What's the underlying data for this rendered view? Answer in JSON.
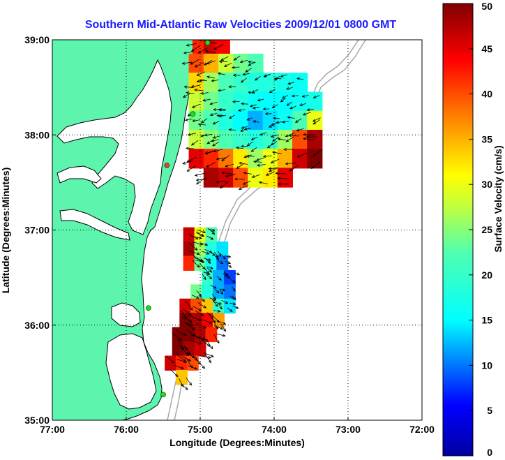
{
  "chart_data": {
    "type": "heatmap",
    "title": "Southern Mid-Atlantic Raw Velocities 2009/12/01 0800 GMT",
    "xlabel": "Longitude (Degrees:Minutes)",
    "ylabel": "Latitude (Degrees:Minutes)",
    "colorbar_label": "Surface Velocity (cm/s)",
    "x_ticks": [
      "77:00",
      "76:00",
      "75:00",
      "74:00",
      "73:00",
      "72:00"
    ],
    "y_ticks": [
      "39:00",
      "38:00",
      "37:00",
      "36:00",
      "35:00"
    ],
    "colorbar_ticks": [
      "50",
      "45",
      "40",
      "35",
      "30",
      "25",
      "20",
      "15",
      "10",
      "5",
      "0"
    ],
    "xlim": [
      -77,
      -72
    ],
    "ylim": [
      35,
      39
    ],
    "clim": [
      0,
      50
    ],
    "grid": true,
    "colormap": "jet",
    "land_color": "#5df5ad",
    "station_color": "#22dd22",
    "north_region": [
      [
        -75.0,
        38.95,
        42
      ],
      [
        -74.85,
        38.95,
        46
      ],
      [
        -74.7,
        38.95,
        44
      ],
      [
        -75.05,
        38.75,
        40
      ],
      [
        -74.85,
        38.75,
        35
      ],
      [
        -74.65,
        38.75,
        28
      ],
      [
        -74.45,
        38.75,
        24
      ],
      [
        -74.25,
        38.75,
        22
      ],
      [
        -75.05,
        38.55,
        33
      ],
      [
        -74.85,
        38.55,
        26
      ],
      [
        -74.65,
        38.55,
        22
      ],
      [
        -74.45,
        38.55,
        20
      ],
      [
        -74.25,
        38.55,
        18
      ],
      [
        -74.05,
        38.55,
        18
      ],
      [
        -73.85,
        38.55,
        17
      ],
      [
        -73.65,
        38.55,
        16
      ],
      [
        -75.05,
        38.35,
        28
      ],
      [
        -74.85,
        38.35,
        24
      ],
      [
        -74.65,
        38.35,
        20
      ],
      [
        -74.45,
        38.35,
        18
      ],
      [
        -74.25,
        38.35,
        16
      ],
      [
        -74.05,
        38.35,
        15
      ],
      [
        -73.85,
        38.35,
        15
      ],
      [
        -73.65,
        38.35,
        16
      ],
      [
        -73.45,
        38.35,
        17
      ],
      [
        -75.05,
        38.15,
        24
      ],
      [
        -74.85,
        38.15,
        22
      ],
      [
        -74.65,
        38.15,
        18
      ],
      [
        -74.45,
        38.15,
        15
      ],
      [
        -74.25,
        38.15,
        12
      ],
      [
        -74.05,
        38.15,
        14
      ],
      [
        -73.85,
        38.15,
        16
      ],
      [
        -73.65,
        38.15,
        22
      ],
      [
        -73.45,
        38.15,
        30
      ],
      [
        -75.05,
        37.95,
        28
      ],
      [
        -74.85,
        37.95,
        25
      ],
      [
        -74.65,
        37.95,
        22
      ],
      [
        -74.45,
        37.95,
        20
      ],
      [
        -74.25,
        37.95,
        18
      ],
      [
        -74.05,
        37.95,
        20
      ],
      [
        -73.85,
        37.95,
        26
      ],
      [
        -73.65,
        37.95,
        40
      ],
      [
        -73.45,
        37.95,
        48
      ],
      [
        -75.05,
        37.75,
        45
      ],
      [
        -74.85,
        37.75,
        42
      ],
      [
        -74.65,
        37.75,
        38
      ],
      [
        -74.45,
        37.75,
        32
      ],
      [
        -74.25,
        37.75,
        26
      ],
      [
        -74.05,
        37.75,
        30
      ],
      [
        -73.85,
        37.75,
        35
      ],
      [
        -73.65,
        37.75,
        46
      ],
      [
        -73.45,
        37.75,
        50
      ],
      [
        -74.85,
        37.55,
        48
      ],
      [
        -74.65,
        37.55,
        46
      ],
      [
        -74.45,
        37.55,
        40
      ],
      [
        -74.25,
        37.55,
        30
      ],
      [
        -74.05,
        37.55,
        32
      ],
      [
        -73.85,
        37.55,
        45
      ]
    ],
    "south_region": [
      [
        -75.15,
        36.95,
        46
      ],
      [
        -75.0,
        36.95,
        30
      ],
      [
        -74.85,
        36.95,
        22
      ],
      [
        -75.15,
        36.8,
        48
      ],
      [
        -75.0,
        36.8,
        26
      ],
      [
        -74.85,
        36.8,
        18
      ],
      [
        -74.7,
        36.8,
        14
      ],
      [
        -75.15,
        36.65,
        42
      ],
      [
        -75.0,
        36.65,
        24
      ],
      [
        -74.85,
        36.65,
        16
      ],
      [
        -74.7,
        36.65,
        10
      ],
      [
        -74.9,
        36.5,
        20
      ],
      [
        -74.75,
        36.5,
        12
      ],
      [
        -74.6,
        36.5,
        8
      ],
      [
        -75.05,
        36.35,
        24
      ],
      [
        -74.9,
        36.35,
        18
      ],
      [
        -74.75,
        36.35,
        12
      ],
      [
        -74.6,
        36.35,
        10
      ],
      [
        -75.2,
        36.2,
        46
      ],
      [
        -75.05,
        36.2,
        40
      ],
      [
        -74.9,
        36.2,
        34
      ],
      [
        -74.75,
        36.2,
        20
      ],
      [
        -74.6,
        36.2,
        14
      ],
      [
        -75.2,
        36.05,
        50
      ],
      [
        -75.05,
        36.05,
        48
      ],
      [
        -74.9,
        36.05,
        44
      ],
      [
        -74.75,
        36.05,
        36
      ],
      [
        -75.3,
        35.9,
        50
      ],
      [
        -75.15,
        35.9,
        50
      ],
      [
        -75.0,
        35.9,
        48
      ],
      [
        -74.85,
        35.9,
        42
      ],
      [
        -75.3,
        35.75,
        50
      ],
      [
        -75.15,
        35.75,
        48
      ],
      [
        -75.0,
        35.75,
        46
      ],
      [
        -75.4,
        35.6,
        46
      ],
      [
        -75.25,
        35.6,
        42
      ],
      [
        -75.1,
        35.6,
        40
      ],
      [
        -75.25,
        35.45,
        34
      ]
    ],
    "stations": [
      [
        -74.9,
        38.97
      ],
      [
        -75.1,
        38.22
      ],
      [
        -75.45,
        37.68
      ],
      [
        -75.7,
        36.18
      ],
      [
        -75.5,
        35.27
      ]
    ]
  }
}
